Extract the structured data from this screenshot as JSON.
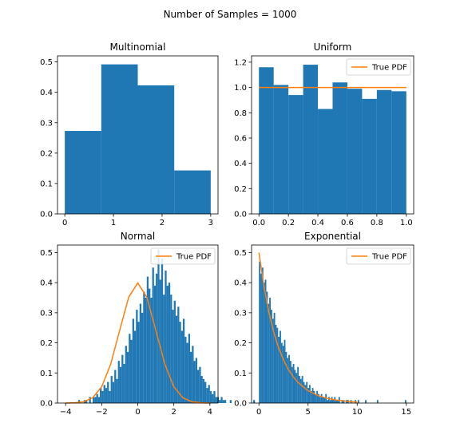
{
  "figure": {
    "suptitle": "Number of Samples = 1000"
  },
  "colors": {
    "bars": "#1f77b4",
    "pdf": "#ff7f0e"
  },
  "chart_data": [
    {
      "type": "bar",
      "title": "Multinomial",
      "xlim": [
        -0.15,
        3.15
      ],
      "ylim": [
        0,
        0.52
      ],
      "xticks": [
        0,
        1,
        2,
        3
      ],
      "yticks": [
        0.0,
        0.1,
        0.2,
        0.3,
        0.4,
        0.5
      ],
      "xticklabels": [
        "0",
        "1",
        "2",
        "3"
      ],
      "yticklabels": [
        "0.0",
        "0.1",
        "0.2",
        "0.3",
        "0.4",
        "0.5"
      ],
      "bins": [
        [
          0,
          0.75,
          0.273
        ],
        [
          0.75,
          1.5,
          0.492
        ],
        [
          1.5,
          2.25,
          0.423
        ],
        [
          2.25,
          3,
          0.143
        ]
      ],
      "legend": null
    },
    {
      "type": "bar",
      "title": "Uniform",
      "xlim": [
        -0.05,
        1.05
      ],
      "ylim": [
        0,
        1.25
      ],
      "xticks": [
        0,
        0.2,
        0.4,
        0.6,
        0.8,
        1.0
      ],
      "yticks": [
        0.0,
        0.2,
        0.4,
        0.6,
        0.8,
        1.0,
        1.2
      ],
      "xticklabels": [
        "0.0",
        "0.2",
        "0.4",
        "0.6",
        "0.8",
        "1.0"
      ],
      "yticklabels": [
        "0.0",
        "0.2",
        "0.4",
        "0.6",
        "0.8",
        "1.0",
        "1.2"
      ],
      "bins": [
        [
          0,
          0.1,
          1.16
        ],
        [
          0.1,
          0.2,
          1.02
        ],
        [
          0.2,
          0.3,
          0.94
        ],
        [
          0.3,
          0.4,
          1.18
        ],
        [
          0.4,
          0.5,
          0.83
        ],
        [
          0.5,
          0.6,
          1.04
        ],
        [
          0.6,
          0.7,
          0.99
        ],
        [
          0.7,
          0.8,
          0.91
        ],
        [
          0.8,
          0.9,
          0.98
        ],
        [
          0.9,
          1.0,
          0.97
        ]
      ],
      "pdf": {
        "x": [
          0,
          1
        ],
        "y": [
          1,
          1
        ]
      },
      "legend": {
        "label": "True PDF",
        "loc": "upper right"
      }
    },
    {
      "type": "bar",
      "title": "Normal",
      "xlim": [
        -4.45,
        4.45
      ],
      "ylim": [
        0,
        0.525
      ],
      "xticks": [
        -4,
        -2,
        0,
        2,
        4
      ],
      "yticks": [
        0.0,
        0.1,
        0.2,
        0.3,
        0.4,
        0.5
      ],
      "xticklabels": [
        "−4",
        "−2",
        "0",
        "2",
        "4"
      ],
      "yticklabels": [
        "0.0",
        "0.1",
        "0.2",
        "0.3",
        "0.4",
        "0.5"
      ],
      "bin_start": -3.3,
      "bin_width": 0.1,
      "bin_heights": [
        0.01,
        0,
        0,
        0.01,
        0.01,
        0,
        0.02,
        0,
        0.02,
        0.02,
        0.03,
        0.02,
        0.05,
        0.04,
        0.06,
        0.05,
        0.07,
        0.04,
        0.09,
        0.07,
        0.11,
        0.08,
        0.14,
        0.12,
        0.16,
        0.13,
        0.19,
        0.17,
        0.23,
        0.21,
        0.28,
        0.24,
        0.31,
        0.27,
        0.33,
        0.3,
        0.37,
        0.35,
        0.42,
        0.38,
        0.35,
        0.45,
        0.39,
        0.43,
        0.51,
        0.41,
        0.48,
        0.36,
        0.44,
        0.39,
        0.4,
        0.36,
        0.31,
        0.34,
        0.29,
        0.32,
        0.27,
        0.24,
        0.28,
        0.22,
        0.2,
        0.23,
        0.17,
        0.19,
        0.14,
        0.15,
        0.11,
        0.12,
        0.09,
        0.08,
        0.07,
        0.05,
        0.06,
        0.04,
        0.03,
        0.04,
        0.02,
        0.02,
        0.01,
        0.02,
        0.01,
        0.01,
        0,
        0,
        0.01,
        0,
        0,
        0,
        0,
        0,
        0,
        0,
        0,
        0,
        0,
        0,
        0,
        0.01
      ],
      "pdf": {
        "x": [
          -4,
          -3.5,
          -3,
          -2.5,
          -2,
          -1.5,
          -1,
          -0.5,
          0,
          0.5,
          1,
          1.5,
          2,
          2.5,
          3,
          3.5,
          4
        ],
        "y": [
          0.0001,
          0.0009,
          0.0044,
          0.0175,
          0.054,
          0.1295,
          0.242,
          0.3521,
          0.3989,
          0.3521,
          0.242,
          0.1295,
          0.054,
          0.0175,
          0.0044,
          0.0009,
          0.0001
        ]
      },
      "legend": {
        "label": "True PDF",
        "loc": "upper right"
      }
    },
    {
      "type": "bar",
      "title": "Exponential",
      "xlim": [
        -0.75,
        15.75
      ],
      "ylim": [
        0,
        0.525
      ],
      "xticks": [
        0,
        5,
        10,
        15
      ],
      "yticks": [
        0.0,
        0.1,
        0.2,
        0.3,
        0.4,
        0.5
      ],
      "xticklabels": [
        "0",
        "5",
        "10",
        "15"
      ],
      "yticklabels": [
        "0.0",
        "0.1",
        "0.2",
        "0.3",
        "0.4",
        "0.5"
      ],
      "bin_start": 0,
      "bin_width": 0.15,
      "bin_heights": [
        0.47,
        0.43,
        0.45,
        0.4,
        0.41,
        0.37,
        0.33,
        0.35,
        0.31,
        0.28,
        0.3,
        0.26,
        0.25,
        0.22,
        0.24,
        0.2,
        0.19,
        0.21,
        0.17,
        0.15,
        0.16,
        0.14,
        0.12,
        0.13,
        0.11,
        0.1,
        0.12,
        0.09,
        0.08,
        0.09,
        0.07,
        0.06,
        0.07,
        0.05,
        0.06,
        0.04,
        0.05,
        0.04,
        0.03,
        0.04,
        0.03,
        0.02,
        0.03,
        0.02,
        0.02,
        0.03,
        0.01,
        0.02,
        0.01,
        0.02,
        0.01,
        0.02,
        0.01,
        0.01,
        0.02,
        0,
        0.01,
        0.01,
        0,
        0.01,
        0.01,
        0,
        0.01,
        0,
        0,
        0.01,
        0,
        0.01,
        0,
        0,
        0,
        0,
        0.01,
        0,
        0,
        0,
        0,
        0,
        0,
        0,
        0.01,
        0,
        0,
        0,
        0,
        0,
        0,
        0,
        0,
        0,
        0,
        0,
        0,
        0,
        0,
        0,
        0,
        0,
        0,
        0.01
      ],
      "pdf": {
        "x": [
          0,
          0.5,
          1,
          1.5,
          2,
          2.5,
          3,
          3.5,
          4,
          5,
          6,
          7,
          8,
          9,
          10
        ],
        "y": [
          0.5,
          0.3894,
          0.3033,
          0.2362,
          0.1839,
          0.1433,
          0.1116,
          0.0869,
          0.0677,
          0.041,
          0.0249,
          0.0151,
          0.0092,
          0.0056,
          0.0034
        ]
      },
      "legend": {
        "label": "True PDF",
        "loc": "upper right"
      }
    }
  ]
}
